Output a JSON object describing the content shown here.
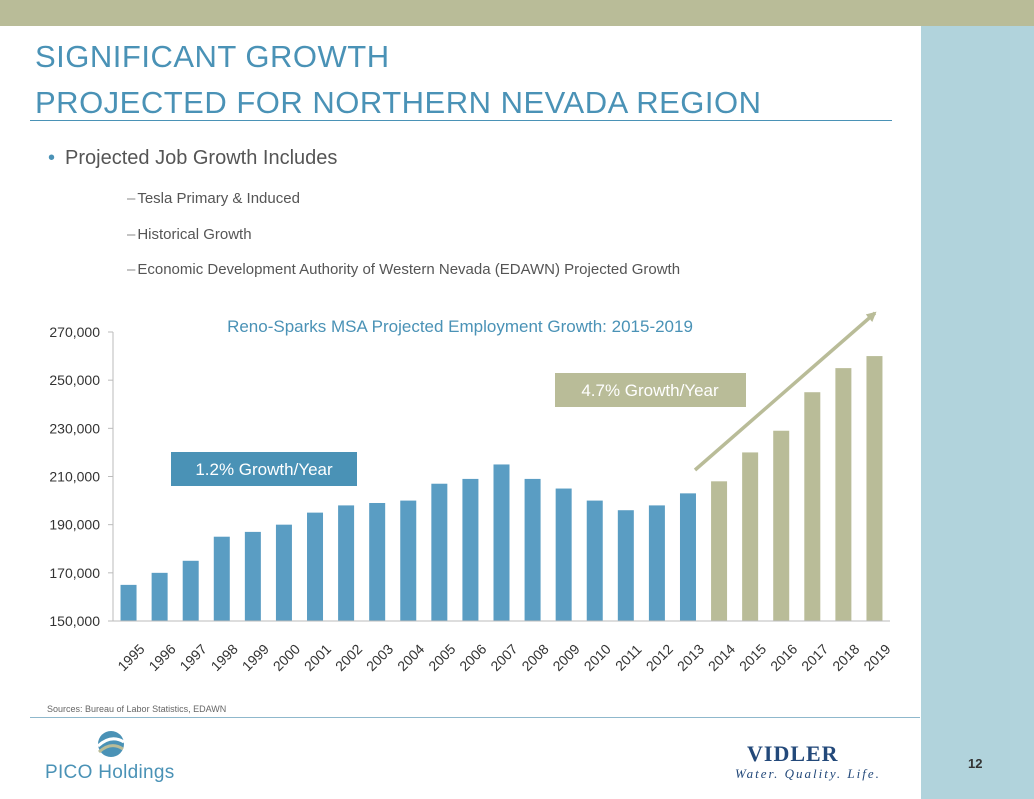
{
  "title_line1": "SIGNIFICANT GROWTH",
  "title_line2": "PROJECTED FOR NORTHERN NEVADA REGION",
  "bullet": "Projected Job Growth Includes",
  "sub_items": [
    "Tesla Primary & Induced",
    "Historical Growth",
    "Economic Development Authority of Western Nevada (EDAWN) Projected Growth"
  ],
  "sources": "Sources: Bureau of Labor Statistics, EDAWN",
  "logo_left": "PICO Holdings",
  "logo_right": "VIDLER",
  "logo_right_tagline": "Water. Quality. Life.",
  "page_number": "12",
  "colors": {
    "historical": "#5a9dc3",
    "projected": "#b9bc98",
    "title": "#4a92b6",
    "arrow": "#b9bc98"
  },
  "chart_data": {
    "type": "bar",
    "title": "Reno-Sparks MSA Projected Employment Growth: 2015-2019",
    "categories": [
      "1995",
      "1996",
      "1997",
      "1998",
      "1999",
      "2000",
      "2001",
      "2002",
      "2003",
      "2004",
      "2005",
      "2006",
      "2007",
      "2008",
      "2009",
      "2010",
      "2011",
      "2012",
      "2013",
      "2014",
      "2015",
      "2016",
      "2017",
      "2018",
      "2019"
    ],
    "values": [
      165000,
      170000,
      175000,
      185000,
      187000,
      190000,
      195000,
      198000,
      199000,
      200000,
      207000,
      209000,
      215000,
      209000,
      205000,
      200000,
      196000,
      198000,
      203000,
      208000,
      220000,
      229000,
      245000,
      255000,
      260000
    ],
    "projected_from_index": 19,
    "ylim": [
      150000,
      270000
    ],
    "yticks": [
      "150,000",
      "170,000",
      "190,000",
      "210,000",
      "230,000",
      "250,000",
      "270,000"
    ],
    "ytick_values": [
      150000,
      170000,
      190000,
      210000,
      230000,
      250000,
      270000
    ],
    "annotations": {
      "historical": "1.2% Growth/Year",
      "projected": "4.7% Growth/Year"
    },
    "grid": false,
    "legend": "none"
  }
}
